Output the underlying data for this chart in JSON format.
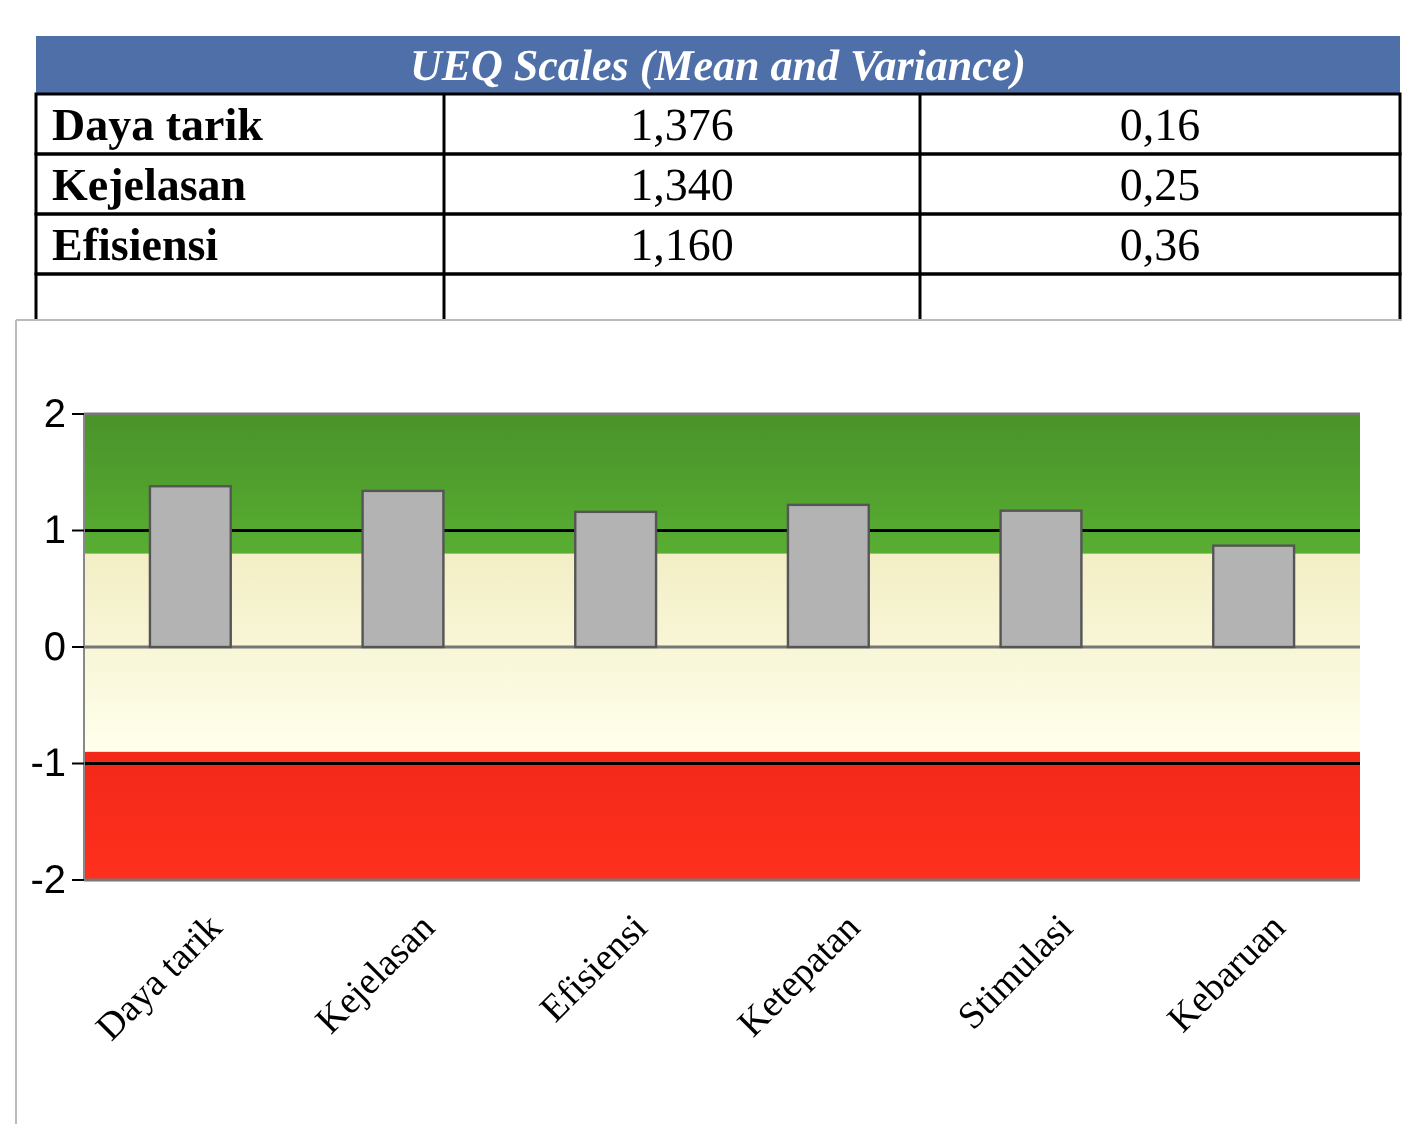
{
  "chart_data": {
    "type": "bar",
    "title": "UEQ Scales (Mean and Variance)",
    "categories": [
      "Daya tarik",
      "Kejelasan",
      "Efisiensi",
      "Ketepatan",
      "Stimulasi",
      "Kebaruan"
    ],
    "values": [
      1.38,
      1.34,
      1.16,
      1.22,
      1.17,
      0.87
    ],
    "annotations": [
      "Daya tarik",
      "1,376",
      "0,16",
      "Kejelasan",
      "1,340",
      "0,25",
      "Efisiensi",
      "1,160",
      "0,36"
    ],
    "color": "#b3b3b3",
    "ylim": [
      -2,
      2
    ],
    "yticks": [
      -2,
      -1,
      0,
      1,
      2
    ],
    "grid": "y",
    "bands": [
      {
        "axis": "y",
        "from": 0.8,
        "to": 2,
        "color": "#4e9a2c"
      },
      {
        "axis": "y",
        "from": -0.9,
        "to": 0.8,
        "color": "#fffbd0"
      },
      {
        "axis": "y",
        "from": -2,
        "to": -0.9,
        "color": "#ff2a1a"
      }
    ]
  }
}
